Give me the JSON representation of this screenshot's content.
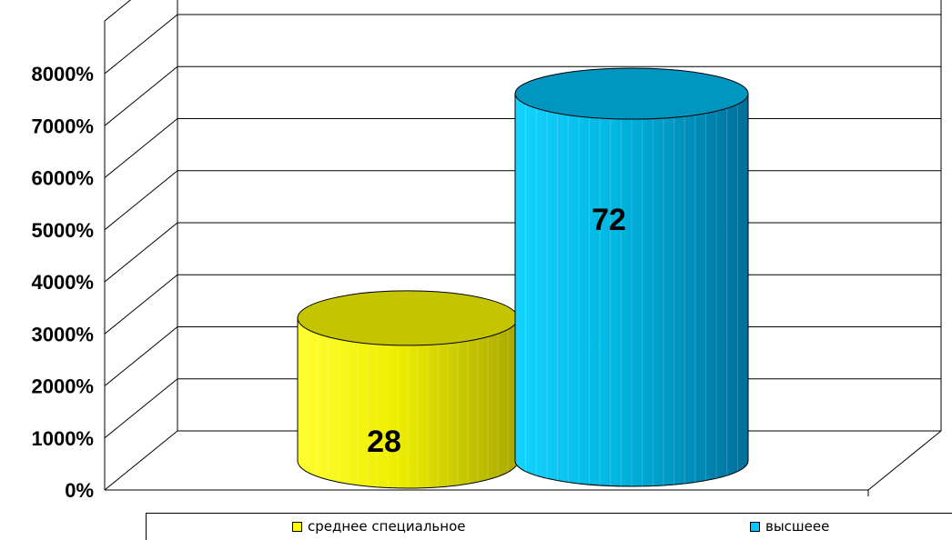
{
  "chart_data": {
    "type": "bar",
    "style": "3d-cylinder",
    "categories": [
      "среднее специальное",
      "высшеее"
    ],
    "values": [
      28,
      72
    ],
    "data_labels": [
      "28",
      "72"
    ],
    "colors": [
      "#ffff00",
      "#00c8ff"
    ],
    "yticks": [
      "0%",
      "1000%",
      "2000%",
      "3000%",
      "4000%",
      "5000%",
      "6000%",
      "7000%",
      "8000%"
    ],
    "ylim": [
      0,
      80
    ],
    "grid": true,
    "legend_position": "bottom",
    "title": "",
    "xlabel": "",
    "ylabel": ""
  },
  "legend": {
    "items": [
      {
        "label": "среднее специальное",
        "color": "#ffff00"
      },
      {
        "label": "высшеее",
        "color": "#00c8ff"
      }
    ]
  }
}
